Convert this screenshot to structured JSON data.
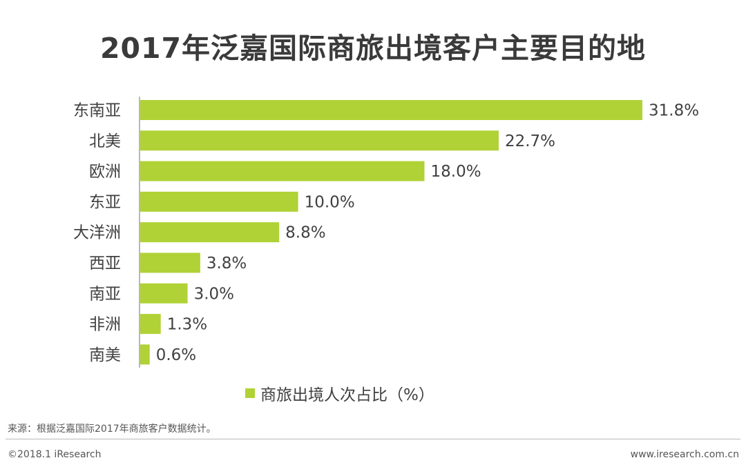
{
  "chart_data": {
    "type": "bar",
    "orientation": "horizontal",
    "title": "2017年泛嘉国际商旅出境客户主要目的地",
    "categories": [
      "东南亚",
      "北美",
      "欧洲",
      "东亚",
      "大洋洲",
      "西亚",
      "南亚",
      "非洲",
      "南美"
    ],
    "values": [
      31.8,
      22.7,
      18.0,
      10.0,
      8.8,
      3.8,
      3.0,
      1.3,
      0.6
    ],
    "value_labels": [
      "31.8%",
      "22.7%",
      "18.0%",
      "10.0%",
      "8.8%",
      "3.8%",
      "3.0%",
      "1.3%",
      "0.6%"
    ],
    "series_name": "商旅出境人次占比（%）",
    "xlim": [
      0,
      31.8
    ],
    "legend_position": "bottom",
    "grid": false,
    "bar_color": "#b0d236"
  },
  "footer": {
    "source": "来源：根据泛嘉国际2017年商旅客户数据统计。",
    "copyright": "©2018.1 iResearch",
    "website": "www.iresearch.com.cn"
  }
}
